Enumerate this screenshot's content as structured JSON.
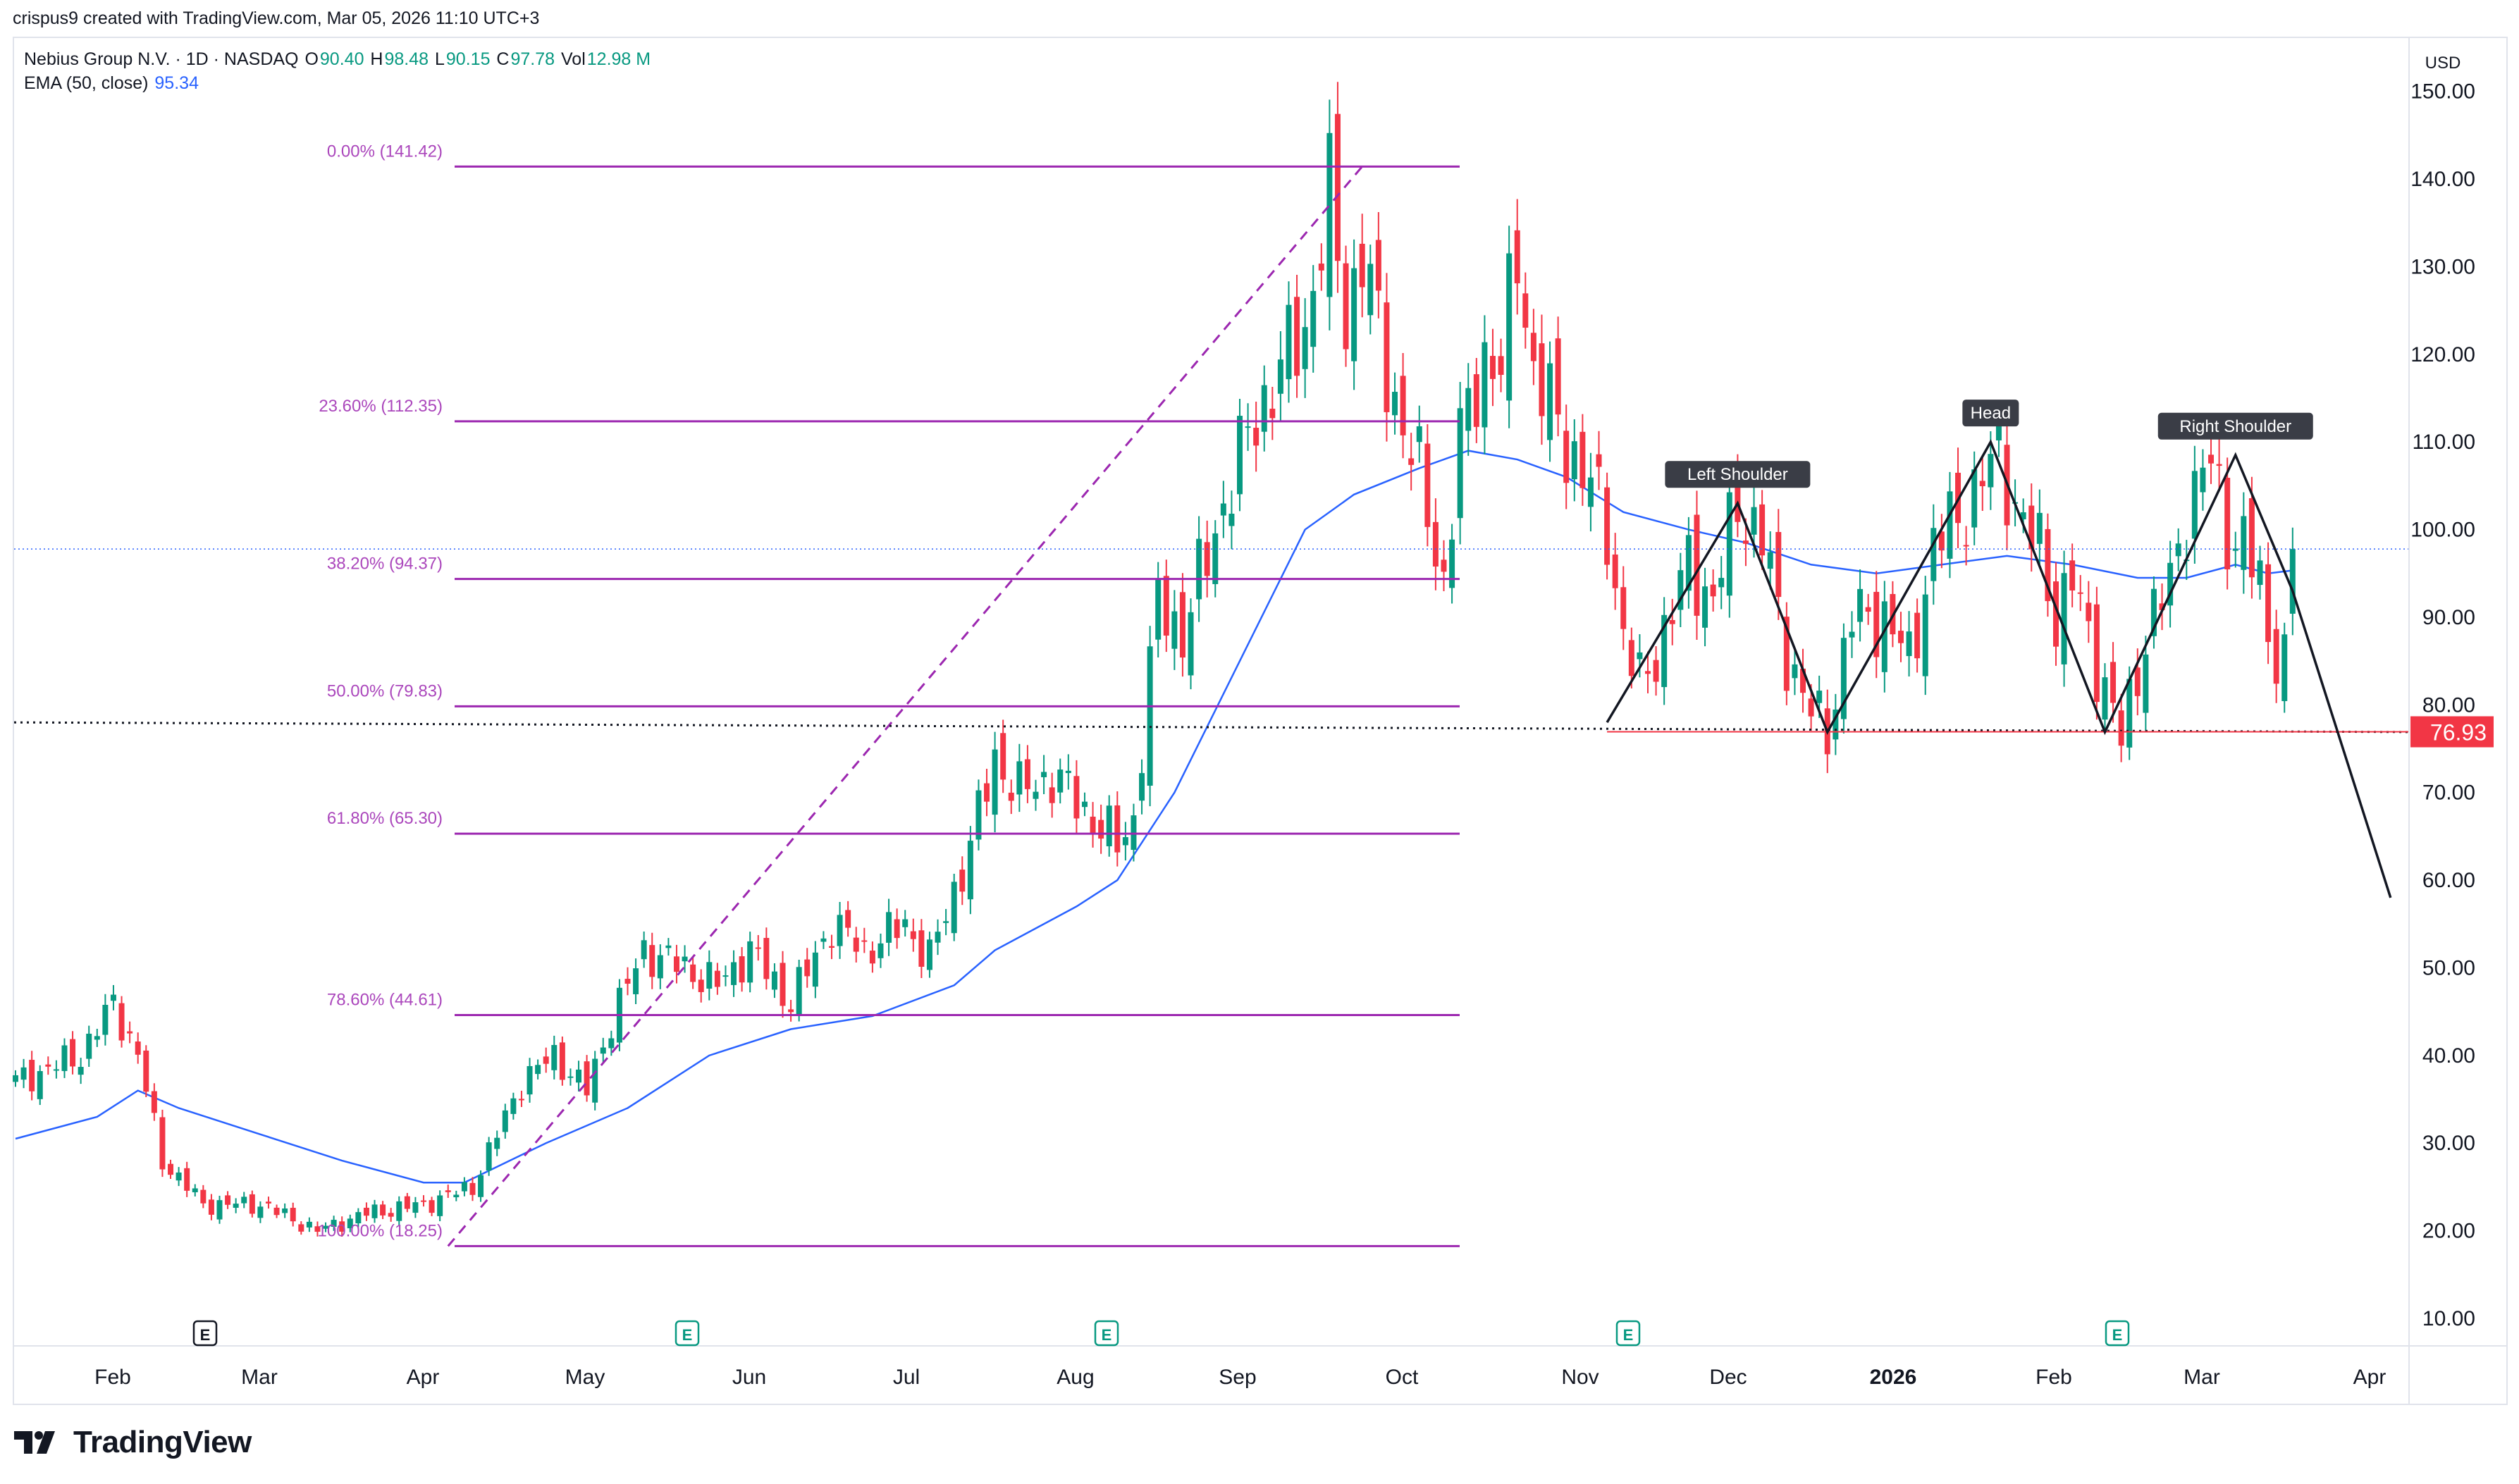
{
  "attribution": "crispus9 created with TradingView.com, Mar 05, 2026 11:10 UTC+3",
  "legend": {
    "symbol": "Nebius Group N.V. · 1D · NASDAQ",
    "o_label": "O",
    "o_value": "90.40",
    "h_label": "H",
    "h_value": "98.48",
    "l_label": "L",
    "l_value": "90.15",
    "c_label": "C",
    "c_value": "97.78",
    "vol_label": "Vol",
    "vol_value": "12.98 M",
    "ema_label": "EMA (50, close)",
    "ema_value": "95.34"
  },
  "currency": "USD",
  "brand": "TradingView",
  "colors": {
    "up": "#089981",
    "down": "#f23645",
    "ema": "#2962ff",
    "fib": "#9c27b0",
    "fib_text": "#ab47bc"
  },
  "chart_data": {
    "type": "candlestick",
    "title": "Nebius Group N.V. · 1D · NASDAQ",
    "xlabel": "",
    "ylabel": "USD",
    "ylim": [
      0,
      160
    ],
    "y_ticks": [
      "150.00",
      "140.00",
      "130.00",
      "120.00",
      "110.00",
      "100.00",
      "90.00",
      "80.00",
      "70.00",
      "60.00",
      "50.00",
      "40.00",
      "30.00",
      "20.00",
      "10.00"
    ],
    "x_ticks": [
      {
        "label": "Feb",
        "bold": false
      },
      {
        "label": "Mar",
        "bold": false
      },
      {
        "label": "Apr",
        "bold": false
      },
      {
        "label": "May",
        "bold": false
      },
      {
        "label": "Jun",
        "bold": false
      },
      {
        "label": "Jul",
        "bold": false
      },
      {
        "label": "Aug",
        "bold": false
      },
      {
        "label": "Sep",
        "bold": false
      },
      {
        "label": "Oct",
        "bold": false
      },
      {
        "label": "Nov",
        "bold": false
      },
      {
        "label": "Dec",
        "bold": false
      },
      {
        "label": "2026",
        "bold": true
      },
      {
        "label": "Feb",
        "bold": false
      },
      {
        "label": "Mar",
        "bold": false
      },
      {
        "label": "Apr",
        "bold": false
      }
    ],
    "last_price": 97.78,
    "neckline_label": "76.93",
    "neckline_value": 76.93,
    "fibonacci": [
      {
        "label": "0.00% (141.42)",
        "value": 141.42
      },
      {
        "label": "23.60% (112.35)",
        "value": 112.35
      },
      {
        "label": "38.20% (94.37)",
        "value": 94.37
      },
      {
        "label": "50.00% (79.83)",
        "value": 79.83
      },
      {
        "label": "61.80% (65.30)",
        "value": 65.3
      },
      {
        "label": "78.60% (44.61)",
        "value": 44.61
      },
      {
        "label": "100.00% (18.25)",
        "value": 18.25
      }
    ],
    "pattern_labels": [
      {
        "text": "Left Shoulder",
        "price": 103
      },
      {
        "text": "Head",
        "price": 110
      },
      {
        "text": "Right Shoulder",
        "price": 108.5
      }
    ],
    "event_markers": [
      "E",
      "E",
      "E",
      "E",
      "E"
    ],
    "series": [
      {
        "name": "Price (daily candles, approx.)",
        "keypoints": [
          [
            0,
            37
          ],
          [
            8,
            40
          ],
          [
            12,
            46
          ],
          [
            15,
            40
          ],
          [
            18,
            28
          ],
          [
            23,
            23
          ],
          [
            30,
            23
          ],
          [
            37,
            20
          ],
          [
            43,
            22
          ],
          [
            50,
            23
          ],
          [
            56,
            25
          ],
          [
            62,
            37
          ],
          [
            66,
            40
          ],
          [
            70,
            36
          ],
          [
            73,
            44
          ],
          [
            77,
            52
          ],
          [
            82,
            50
          ],
          [
            86,
            48
          ],
          [
            90,
            52
          ],
          [
            95,
            46
          ],
          [
            100,
            55
          ],
          [
            104,
            52
          ],
          [
            109,
            55
          ],
          [
            112,
            51
          ],
          [
            117,
            64
          ],
          [
            120,
            74
          ],
          [
            123,
            70
          ],
          [
            127,
            72
          ],
          [
            130,
            69
          ],
          [
            133,
            66
          ],
          [
            135,
            64
          ],
          [
            137,
            67
          ],
          [
            140,
            92
          ],
          [
            143,
            88
          ],
          [
            148,
            103
          ],
          [
            152,
            113
          ],
          [
            156,
            120
          ],
          [
            158,
            123
          ],
          [
            161,
            138
          ],
          [
            163,
            124
          ],
          [
            165,
            132
          ],
          [
            168,
            118
          ],
          [
            172,
            106
          ],
          [
            175,
            94
          ],
          [
            177,
            110
          ],
          [
            180,
            120
          ],
          [
            182,
            118
          ],
          [
            184,
            132
          ],
          [
            186,
            118
          ],
          [
            190,
            110
          ],
          [
            193,
            105
          ],
          [
            195,
            100
          ],
          [
            197,
            88
          ],
          [
            199,
            82
          ],
          [
            201,
            86
          ],
          [
            205,
            96
          ],
          [
            208,
            92
          ],
          [
            211,
            103
          ],
          [
            214,
            99
          ],
          [
            217,
            86
          ],
          [
            220,
            79
          ],
          [
            222,
            77
          ],
          [
            225,
            90
          ],
          [
            229,
            90
          ],
          [
            232,
            85
          ],
          [
            235,
            98
          ],
          [
            240,
            104
          ],
          [
            243,
            109
          ],
          [
            246,
            100
          ],
          [
            248,
            98
          ],
          [
            250,
            90
          ],
          [
            252,
            94
          ],
          [
            254,
            88
          ],
          [
            256,
            82
          ],
          [
            258,
            76
          ],
          [
            261,
            88
          ],
          [
            264,
            94
          ],
          [
            266,
            102
          ],
          [
            269,
            108
          ],
          [
            271,
            100
          ],
          [
            273,
            98
          ],
          [
            275,
            94
          ],
          [
            276,
            88
          ],
          [
            278,
            85
          ],
          [
            279,
            92
          ]
        ]
      },
      {
        "name": "EMA (50, close)",
        "points": [
          [
            0,
            30.5
          ],
          [
            10,
            33
          ],
          [
            15,
            36
          ],
          [
            20,
            34
          ],
          [
            30,
            31
          ],
          [
            40,
            28
          ],
          [
            50,
            25.5
          ],
          [
            55,
            25.5
          ],
          [
            65,
            30
          ],
          [
            75,
            34
          ],
          [
            85,
            40
          ],
          [
            95,
            43
          ],
          [
            105,
            44.5
          ],
          [
            115,
            48
          ],
          [
            120,
            52
          ],
          [
            130,
            57
          ],
          [
            135,
            60
          ],
          [
            142,
            70
          ],
          [
            150,
            85
          ],
          [
            158,
            100
          ],
          [
            164,
            104
          ],
          [
            172,
            107
          ],
          [
            178,
            109
          ],
          [
            184,
            108
          ],
          [
            190,
            106
          ],
          [
            197,
            102
          ],
          [
            205,
            100
          ],
          [
            212,
            98.5
          ],
          [
            220,
            96
          ],
          [
            228,
            95
          ],
          [
            236,
            96
          ],
          [
            244,
            97
          ],
          [
            252,
            96
          ],
          [
            260,
            94.5
          ],
          [
            266,
            94.5
          ],
          [
            272,
            96
          ],
          [
            276,
            95
          ],
          [
            279,
            95.34
          ]
        ]
      }
    ],
    "projection": [
      [
        279,
        93
      ],
      [
        291,
        58
      ]
    ],
    "pattern_line": [
      [
        195,
        78
      ],
      [
        211,
        103
      ],
      [
        222,
        76.9
      ],
      [
        242,
        110
      ],
      [
        256,
        76.9
      ],
      [
        272,
        108.5
      ],
      [
        279,
        93
      ]
    ],
    "fib_trendline": [
      [
        53,
        18.25
      ],
      [
        165,
        141.42
      ]
    ],
    "neckline_dotted": [
      [
        0,
        78
      ],
      [
        286,
        76.9
      ]
    ]
  }
}
